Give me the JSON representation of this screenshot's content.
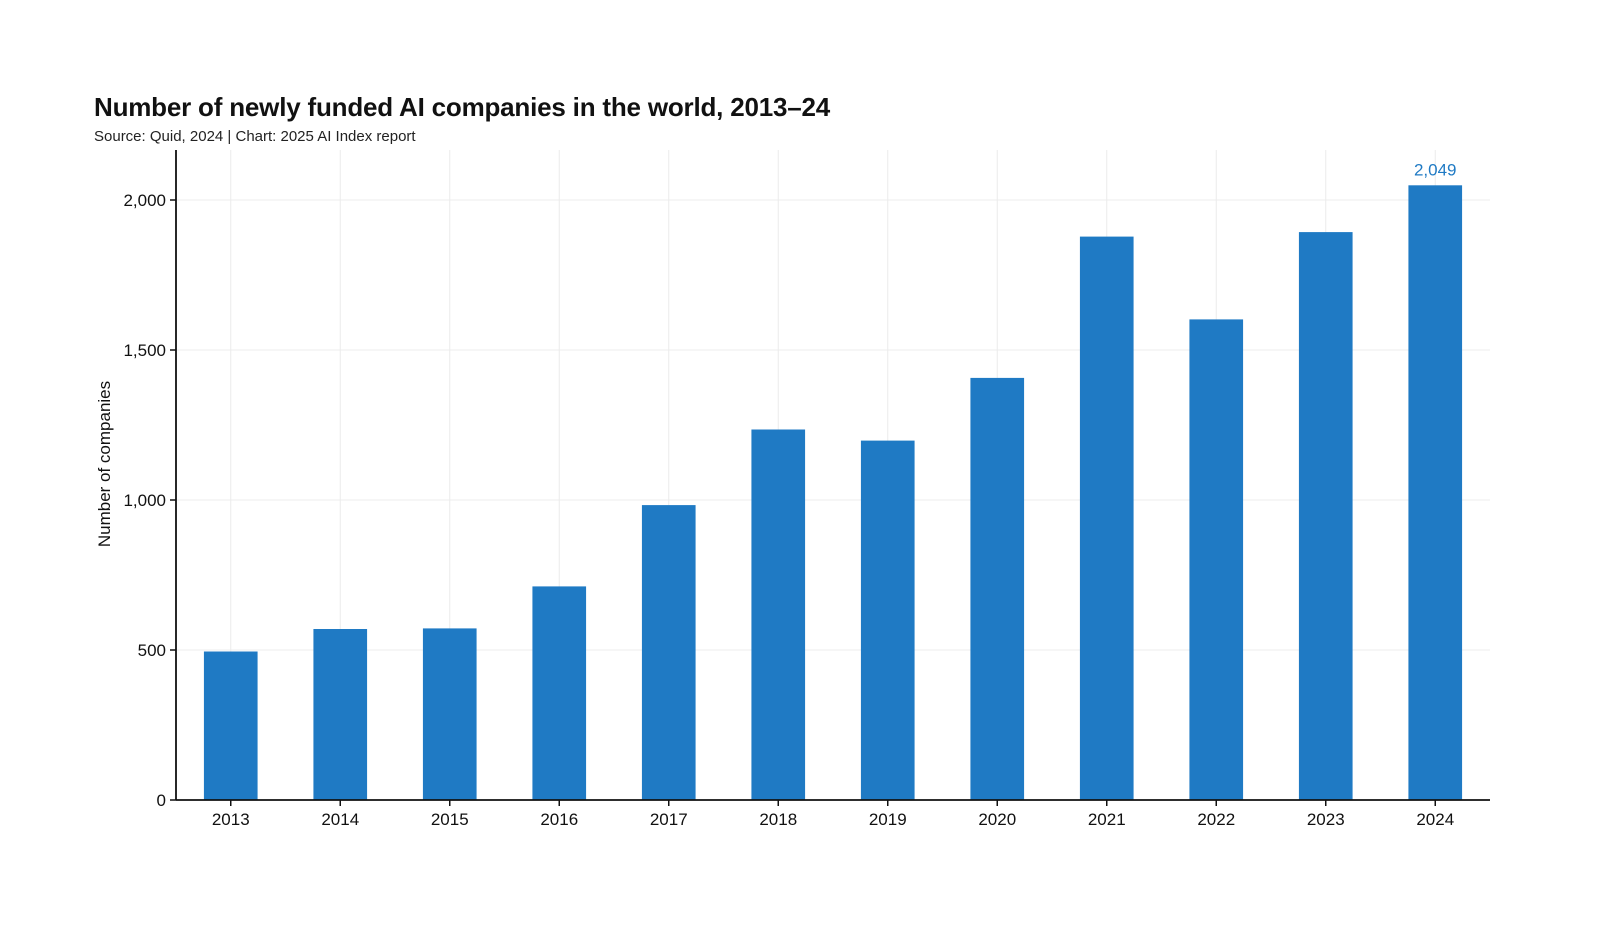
{
  "chart_data": {
    "type": "bar",
    "title": "Number of newly funded AI companies in the world, 2013–24",
    "subtitle": "Source: Quid, 2024 | Chart: 2025 AI Index report",
    "xlabel": "",
    "ylabel": "Number of companies",
    "categories": [
      "2013",
      "2014",
      "2015",
      "2016",
      "2017",
      "2018",
      "2019",
      "2020",
      "2021",
      "2022",
      "2023",
      "2024"
    ],
    "values": [
      495,
      570,
      572,
      712,
      983,
      1235,
      1198,
      1407,
      1878,
      1602,
      1893,
      2049
    ],
    "ylim": [
      0,
      2150
    ],
    "yticks": [
      0,
      500,
      1000,
      1500,
      2000
    ],
    "ytick_labels": [
      "0",
      "500",
      "1,000",
      "1,500",
      "2,000"
    ],
    "data_labels": [
      {
        "category": "2024",
        "text": "2,049"
      }
    ],
    "bar_color": "#1f7ac4",
    "grid": true,
    "legend": "none"
  }
}
